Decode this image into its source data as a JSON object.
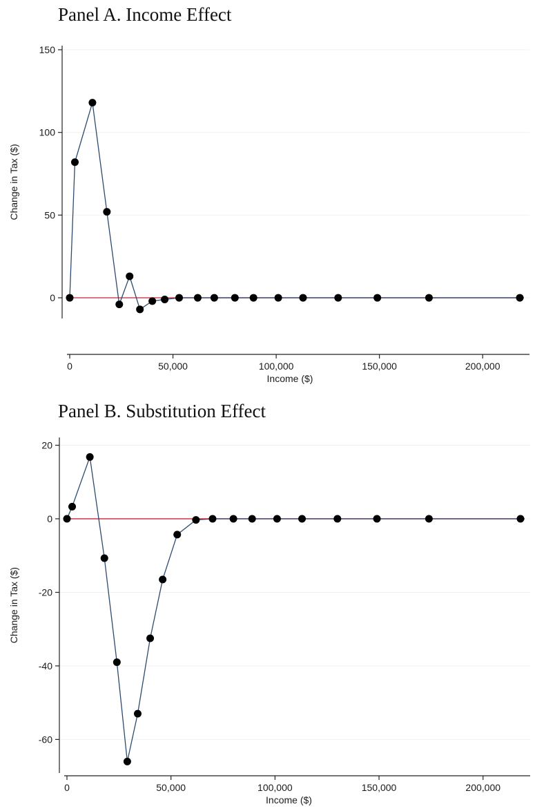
{
  "chart_data": [
    {
      "type": "line",
      "title": "Panel A. Income Effect",
      "xlabel": "Income ($)",
      "ylabel": "Change in Tax ($)",
      "xlim": [
        0,
        220000
      ],
      "ylim": [
        -10,
        150
      ],
      "xticks": [
        0,
        50000,
        100000,
        150000,
        200000
      ],
      "xtick_labels": [
        "0",
        "50,000",
        "100,000",
        "150,000",
        "200,000"
      ],
      "yticks": [
        0,
        50,
        100,
        150
      ],
      "ytick_labels": [
        "0",
        "50",
        "100",
        "150"
      ],
      "grid": true,
      "reference_line": 0,
      "colors": {
        "line": "#2c4a6e",
        "marker": "#000000",
        "reference": "#d0314b"
      },
      "series": [
        {
          "x": [
            0,
            2500,
            11000,
            18000,
            24000,
            29000,
            34000,
            40000,
            46000,
            53000,
            62000,
            70000,
            80000,
            89000,
            101000,
            113000,
            130000,
            149000,
            174000,
            218000
          ],
          "y": [
            0,
            82,
            118,
            52,
            -4,
            13,
            -7,
            -2,
            -1,
            0,
            0,
            0,
            0,
            0,
            0,
            0,
            0,
            0,
            0,
            0
          ]
        }
      ]
    },
    {
      "type": "line",
      "title": "Panel B. Substitution Effect",
      "xlabel": "Income ($)",
      "ylabel": "Change in Tax ($)",
      "xlim": [
        0,
        220000
      ],
      "ylim": [
        -68,
        21
      ],
      "xticks": [
        0,
        50000,
        100000,
        150000,
        200000
      ],
      "xtick_labels": [
        "0",
        "50,000",
        "100,000",
        "150,000",
        "200,000"
      ],
      "yticks": [
        20,
        0,
        -20,
        -40,
        -60
      ],
      "ytick_labels": [
        "20",
        "0",
        "-20",
        "-40",
        "-60"
      ],
      "grid": true,
      "reference_line": 0,
      "colors": {
        "line": "#2c4a6e",
        "marker": "#000000",
        "reference": "#d0314b"
      },
      "series": [
        {
          "x": [
            0,
            2500,
            11000,
            18000,
            24000,
            29000,
            34000,
            40000,
            46000,
            53000,
            62000,
            70000,
            80000,
            89000,
            101000,
            113000,
            130000,
            149000,
            174000,
            218000
          ],
          "y": [
            0,
            3.3,
            16.8,
            -10.7,
            -39,
            -66,
            -53,
            -32.5,
            -16.5,
            -4.3,
            -0.3,
            0,
            0,
            0,
            0,
            0,
            0,
            0,
            0,
            0
          ]
        }
      ]
    }
  ]
}
